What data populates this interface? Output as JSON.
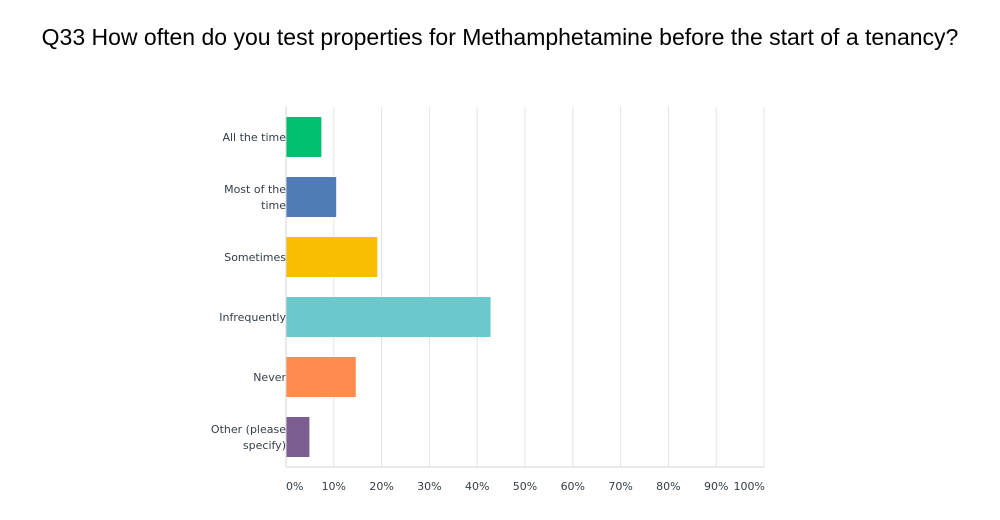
{
  "title": "Q33 How often do you test properties for Methamphetamine before the start of a tenancy?",
  "chart_data": {
    "type": "bar",
    "orientation": "horizontal",
    "title": "Q33 How often do you test properties for Methamphetamine before the start of a tenancy?",
    "categories": [
      [
        "All the time"
      ],
      [
        "Most of the",
        "time"
      ],
      [
        "Sometimes"
      ],
      [
        "Infrequently"
      ],
      [
        "Never"
      ],
      [
        "Other (please",
        "specify)"
      ]
    ],
    "values": [
      7.4,
      10.5,
      19.1,
      42.8,
      14.6,
      4.9
    ],
    "colors": [
      "#00bf6f",
      "#507cb6",
      "#f9be00",
      "#6bc8cd",
      "#ff8b4f",
      "#7d5e90"
    ],
    "xlim": [
      0,
      100
    ],
    "x_ticks": [
      0,
      10,
      20,
      30,
      40,
      50,
      60,
      70,
      80,
      90,
      100
    ],
    "x_tick_labels": [
      "0%",
      "10%",
      "20%",
      "30%",
      "40%",
      "50%",
      "60%",
      "70%",
      "80%",
      "90%",
      "100%"
    ],
    "grid": true,
    "xlabel": "",
    "ylabel": ""
  }
}
